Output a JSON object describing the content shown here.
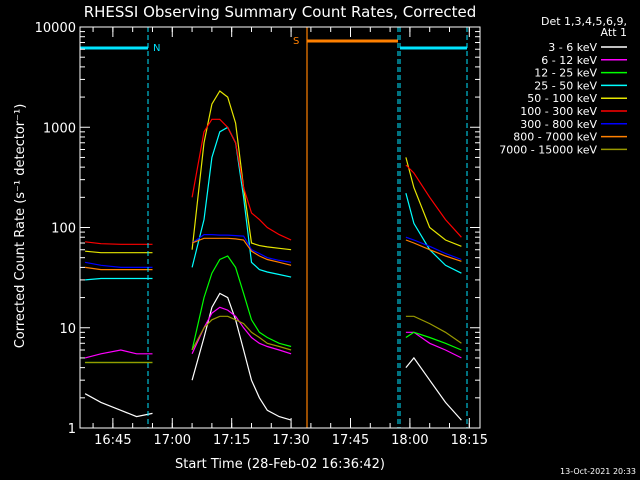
{
  "chart_data": {
    "type": "line",
    "title": "RHESSI Observing Summary Count Rates, Corrected",
    "xlabel": "Start Time (28-Feb-02 16:36:42)",
    "ylabel": "Corrected Count Rate (s⁻¹ detector⁻¹)",
    "y_scale": "log",
    "ylim": [
      1,
      10000
    ],
    "xlim_minutes_since_start": [
      0,
      101
    ],
    "y_ticks": [
      {
        "value": 1,
        "label": "1"
      },
      {
        "value": 10,
        "label": "10"
      },
      {
        "value": 100,
        "label": "100"
      },
      {
        "value": 1000,
        "label": "1000"
      },
      {
        "value": 10000,
        "label": "10000"
      }
    ],
    "x_ticks": [
      {
        "label": "16:45"
      },
      {
        "label": "17:00"
      },
      {
        "label": "17:15"
      },
      {
        "label": "17:30"
      },
      {
        "label": "17:45"
      },
      {
        "label": "18:00"
      },
      {
        "label": "18:15"
      }
    ],
    "legend": {
      "placement": "right",
      "header": [
        "Det 1,3,4,5,6,9,",
        "Att 1"
      ],
      "entries": [
        {
          "label": "3 - 6 keV",
          "color": "#ffffff"
        },
        {
          "label": "6 - 12 keV",
          "color": "#ff00ff"
        },
        {
          "label": "12 - 25 keV",
          "color": "#00ff00"
        },
        {
          "label": "25 - 50 keV",
          "color": "#00ffff"
        },
        {
          "label": "50 - 100 keV",
          "color": "#e6e600"
        },
        {
          "label": "100 - 300 keV",
          "color": "#ff0000"
        },
        {
          "label": "300 - 800 keV",
          "color": "#0000ff"
        },
        {
          "label": "800 - 7000 keV",
          "color": "#ff8000"
        },
        {
          "label": "7000 - 15000 keV",
          "color": "#999900"
        }
      ]
    },
    "flags": [
      {
        "label": "N",
        "color": "#00e5ff"
      },
      {
        "label": "S",
        "color": "#ff8000"
      }
    ],
    "series": [
      {
        "name": "3 - 6 keV",
        "color": "#ffffff",
        "x": [
          "16:38",
          "16:42",
          "16:47",
          "16:51",
          "16:55",
          "17:05",
          "17:08",
          "17:10",
          "17:12",
          "17:14",
          "17:16",
          "17:18",
          "17:20",
          "17:22",
          "17:24",
          "17:27",
          "17:30",
          "17:59",
          "18:01",
          "18:05",
          "18:09",
          "18:13"
        ],
        "y": [
          2.2,
          1.8,
          1.5,
          1.3,
          1.4,
          3,
          8,
          16,
          22,
          20,
          12,
          6,
          3,
          2,
          1.5,
          1.3,
          1.2,
          4,
          5,
          3,
          1.8,
          1.2
        ]
      },
      {
        "name": "6 - 12 keV",
        "color": "#ff00ff",
        "x": [
          "16:38",
          "16:42",
          "16:47",
          "16:51",
          "16:55",
          "17:05",
          "17:08",
          "17:10",
          "17:12",
          "17:14",
          "17:16",
          "17:18",
          "17:20",
          "17:22",
          "17:24",
          "17:27",
          "17:30",
          "17:59",
          "18:01",
          "18:05",
          "18:09",
          "18:13"
        ],
        "y": [
          5,
          5.5,
          6,
          5.5,
          5.5,
          5.5,
          10,
          14,
          16,
          15,
          13,
          10,
          8,
          7,
          6.5,
          6,
          5.5,
          9,
          9,
          7,
          6,
          5
        ]
      },
      {
        "name": "12 - 25 keV",
        "color": "#00ff00",
        "x": [
          "16:38",
          "16:42",
          "16:47",
          "16:51",
          "16:55",
          "17:05",
          "17:08",
          "17:10",
          "17:12",
          "17:14",
          "17:16",
          "17:18",
          "17:20",
          "17:22",
          "17:24",
          "17:27",
          "17:30",
          "17:59",
          "18:01",
          "18:05",
          "18:09",
          "18:13"
        ],
        "y": [
          4.5,
          4.5,
          4.5,
          4.5,
          4.5,
          6,
          20,
          35,
          48,
          52,
          40,
          22,
          12,
          9,
          8,
          7,
          6.5,
          8,
          9,
          8,
          7,
          6
        ]
      },
      {
        "name": "25 - 50 keV",
        "color": "#00ffff",
        "x": [
          "16:38",
          "16:42",
          "16:47",
          "16:51",
          "16:55",
          "17:05",
          "17:08",
          "17:10",
          "17:12",
          "17:14",
          "17:16",
          "17:18",
          "17:20",
          "17:22",
          "17:24",
          "17:27",
          "17:30",
          "17:59",
          "18:01",
          "18:05",
          "18:09",
          "18:13"
        ],
        "y": [
          30,
          31,
          31,
          31,
          31,
          40,
          120,
          500,
          900,
          1000,
          700,
          200,
          45,
          38,
          36,
          34,
          32,
          220,
          110,
          60,
          42,
          35
        ]
      },
      {
        "name": "50 - 100 keV",
        "color": "#e6e600",
        "x": [
          "16:38",
          "16:42",
          "16:47",
          "16:51",
          "16:55",
          "17:05",
          "17:08",
          "17:10",
          "17:12",
          "17:14",
          "17:16",
          "17:18",
          "17:20",
          "17:22",
          "17:24",
          "17:27",
          "17:30",
          "17:59",
          "18:01",
          "18:05",
          "18:09",
          "18:13"
        ],
        "y": [
          58,
          56,
          56,
          56,
          56,
          60,
          700,
          1700,
          2300,
          2000,
          1100,
          250,
          70,
          66,
          64,
          62,
          60,
          500,
          250,
          100,
          75,
          65
        ]
      },
      {
        "name": "100 - 300 keV",
        "color": "#ff0000",
        "x": [
          "16:38",
          "16:42",
          "16:47",
          "16:51",
          "16:55",
          "17:05",
          "17:08",
          "17:10",
          "17:12",
          "17:14",
          "17:16",
          "17:18",
          "17:20",
          "17:22",
          "17:24",
          "17:27",
          "17:30",
          "17:59",
          "18:01",
          "18:05",
          "18:09",
          "18:13"
        ],
        "y": [
          72,
          69,
          68,
          68,
          68,
          200,
          900,
          1200,
          1200,
          1000,
          700,
          250,
          140,
          120,
          100,
          85,
          75,
          420,
          350,
          200,
          120,
          80
        ]
      },
      {
        "name": "300 - 800 keV",
        "color": "#0000ff",
        "x": [
          "16:38",
          "16:42",
          "16:47",
          "16:51",
          "16:55",
          "17:05",
          "17:08",
          "17:10",
          "17:12",
          "17:14",
          "17:16",
          "17:18",
          "17:20",
          "17:22",
          "17:24",
          "17:27",
          "17:30",
          "17:59",
          "18:01",
          "18:05",
          "18:09",
          "18:13"
        ],
        "y": [
          45,
          42,
          40,
          40,
          40,
          70,
          85,
          85,
          84,
          84,
          83,
          82,
          60,
          55,
          50,
          47,
          45,
          80,
          75,
          65,
          55,
          48
        ]
      },
      {
        "name": "800 - 7000 keV",
        "color": "#ff8000",
        "x": [
          "16:38",
          "16:42",
          "16:47",
          "16:51",
          "16:55",
          "17:05",
          "17:08",
          "17:10",
          "17:12",
          "17:14",
          "17:16",
          "17:18",
          "17:20",
          "17:22",
          "17:24",
          "17:27",
          "17:30",
          "17:59",
          "18:01",
          "18:05",
          "18:09",
          "18:13"
        ],
        "y": [
          40,
          38,
          38,
          38,
          38,
          70,
          78,
          78,
          78,
          78,
          77,
          75,
          58,
          52,
          48,
          45,
          42,
          75,
          70,
          60,
          52,
          46
        ]
      },
      {
        "name": "7000 - 15000 keV",
        "color": "#999900",
        "x": [
          "16:38",
          "16:42",
          "16:47",
          "16:51",
          "16:55",
          "17:05",
          "17:08",
          "17:10",
          "17:12",
          "17:14",
          "17:16",
          "17:18",
          "17:20",
          "17:22",
          "17:24",
          "17:27",
          "17:30",
          "17:59",
          "18:01",
          "18:05",
          "18:09",
          "18:13"
        ],
        "y": [
          4.5,
          4.5,
          4.5,
          4.5,
          4.5,
          6,
          10,
          12,
          13,
          13,
          12,
          11,
          9,
          8,
          7,
          6.5,
          6,
          13,
          13,
          11,
          9,
          7
        ]
      }
    ]
  },
  "footer_date": "13-Oct-2021 20:33"
}
